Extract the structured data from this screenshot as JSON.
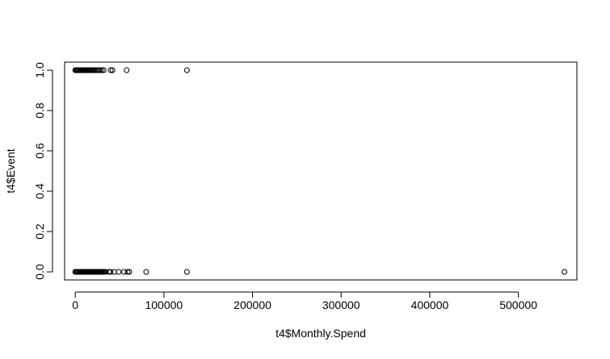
{
  "chart_data": {
    "type": "scatter",
    "title": "",
    "xlabel": "t4$Monthly.Spend",
    "ylabel": "t4$Event",
    "xlim": [
      -12000,
      566000
    ],
    "ylim": [
      -0.04,
      1.04
    ],
    "x_ticks": [
      0,
      100000,
      200000,
      300000,
      400000,
      500000
    ],
    "x_tick_labels": [
      "0",
      "100000",
      "200000",
      "300000",
      "400000",
      "500000"
    ],
    "y_ticks": [
      0.0,
      0.2,
      0.4,
      0.6,
      0.8,
      1.0
    ],
    "y_tick_labels": [
      "0.0",
      "0.2",
      "0.4",
      "0.6",
      "0.8",
      "1.0"
    ],
    "grid": false,
    "legend": "none",
    "marker": "open-circle",
    "series": [
      {
        "x": [
          0,
          1000,
          2000,
          3000,
          4000,
          5000,
          6000,
          7000,
          8000,
          9000,
          10000,
          11000,
          12000,
          13000,
          14000,
          15000,
          16000,
          17000,
          18000,
          19000,
          20000,
          21000,
          22000,
          24000,
          26000,
          28000,
          30000,
          32000,
          40000,
          42000,
          58000,
          126000
        ],
        "y": [
          1,
          1,
          1,
          1,
          1,
          1,
          1,
          1,
          1,
          1,
          1,
          1,
          1,
          1,
          1,
          1,
          1,
          1,
          1,
          1,
          1,
          1,
          1,
          1,
          1,
          1,
          1,
          1,
          1,
          1,
          1,
          1
        ]
      },
      {
        "x": [
          0,
          1000,
          2000,
          3000,
          4000,
          5000,
          6000,
          7000,
          8000,
          9000,
          10000,
          11000,
          12000,
          13000,
          14000,
          15000,
          16000,
          17000,
          18000,
          19000,
          20000,
          21000,
          22000,
          23000,
          24000,
          25000,
          26000,
          27000,
          28000,
          29000,
          30000,
          31000,
          32000,
          33000,
          34000,
          38000,
          40000,
          44000,
          49000,
          55000,
          59000,
          61000,
          80000,
          126000,
          552000
        ],
        "y": [
          0,
          0,
          0,
          0,
          0,
          0,
          0,
          0,
          0,
          0,
          0,
          0,
          0,
          0,
          0,
          0,
          0,
          0,
          0,
          0,
          0,
          0,
          0,
          0,
          0,
          0,
          0,
          0,
          0,
          0,
          0,
          0,
          0,
          0,
          0,
          0,
          0,
          0,
          0,
          0,
          0,
          0,
          0,
          0,
          0
        ]
      }
    ]
  }
}
